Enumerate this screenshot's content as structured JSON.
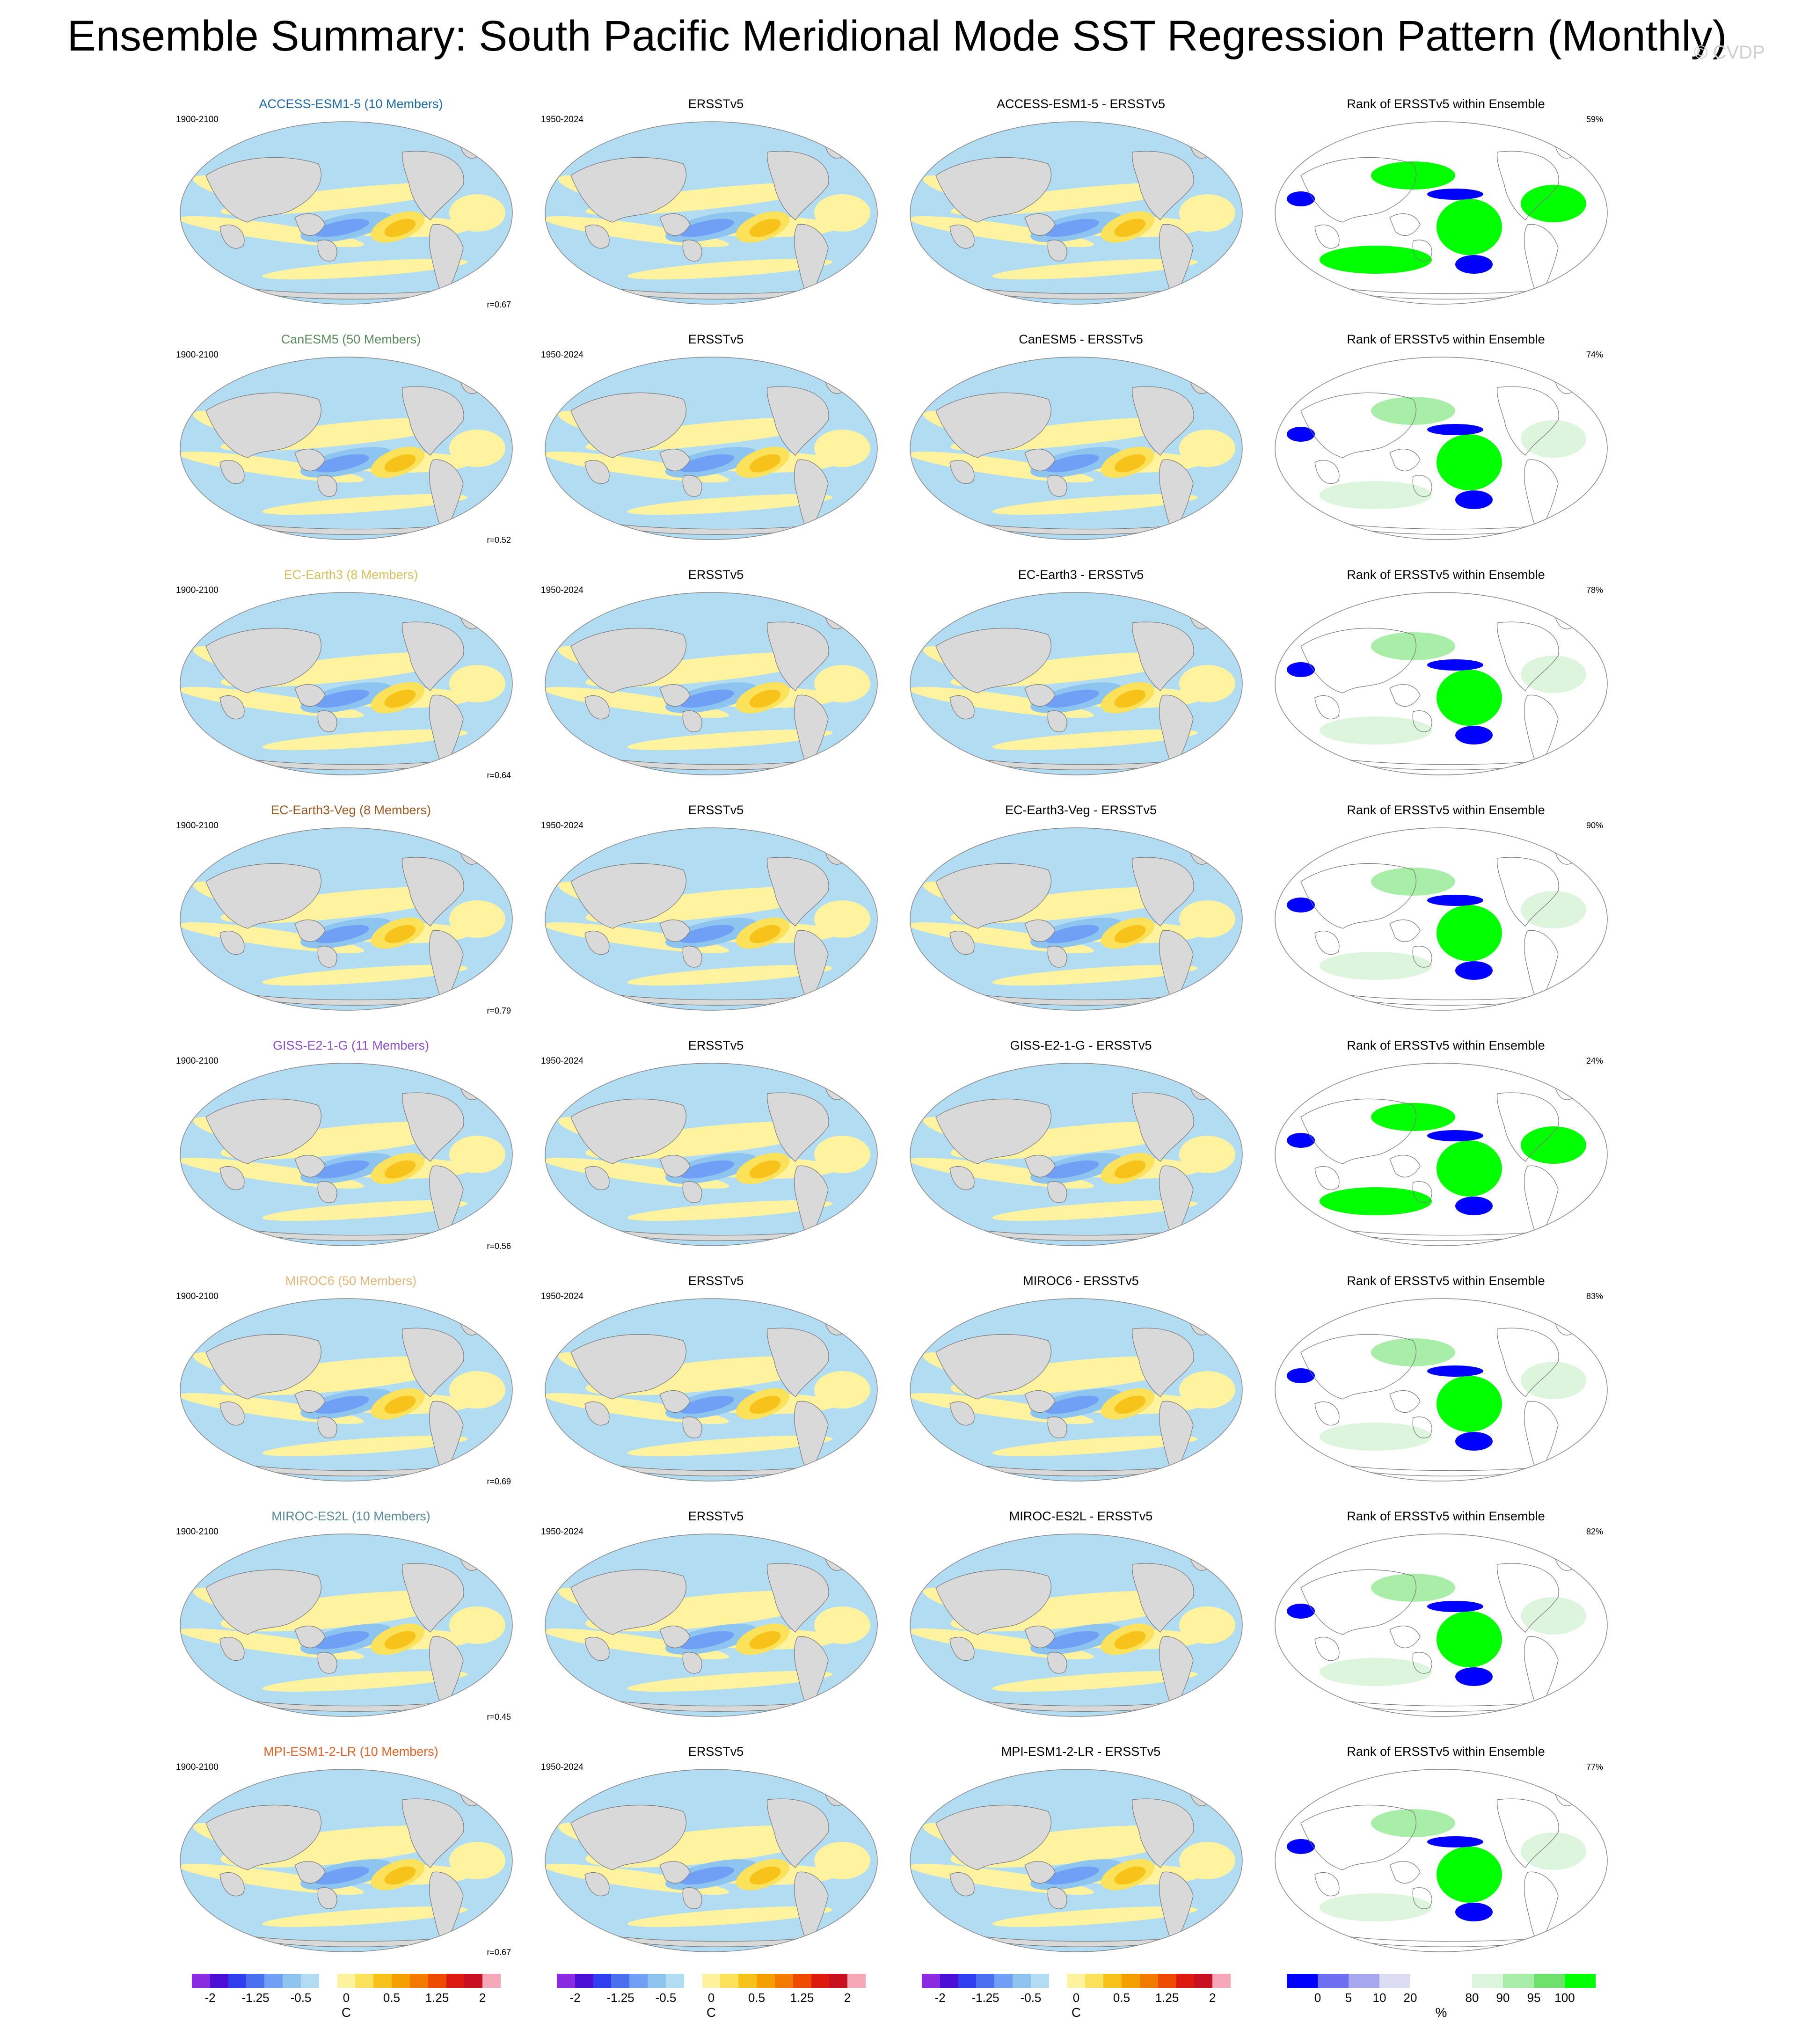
{
  "title": "Ensemble Summary: South Pacific Meridional Mode SST Regression Pattern (Monthly)",
  "copyright": "© CVDP",
  "rows": [
    {
      "model": "ACCESS-ESM1-5 (10 Members)",
      "diff": "ACCESS-ESM1-5 - ERSSTv5",
      "period": "1900-2100",
      "r": "r=0.67",
      "pct": "59%",
      "color": "#1f6aa5"
    },
    {
      "model": "CanESM5 (50 Members)",
      "diff": "CanESM5 - ERSSTv5",
      "period": "1900-2100",
      "r": "r=0.52",
      "pct": "74%",
      "color": "#5b8a5a"
    },
    {
      "model": "EC-Earth3 (8 Members)",
      "diff": "EC-Earth3 - ERSSTv5",
      "period": "1900-2100",
      "r": "r=0.64",
      "pct": "78%",
      "color": "#d8c060"
    },
    {
      "model": "EC-Earth3-Veg (8 Members)",
      "diff": "EC-Earth3-Veg - ERSSTv5",
      "period": "1900-2100",
      "r": "r=0.79",
      "pct": "90%",
      "color": "#9a5a24"
    },
    {
      "model": "GISS-E2-1-G (11 Members)",
      "diff": "GISS-E2-1-G - ERSSTv5",
      "period": "1900-2100",
      "r": "r=0.56",
      "pct": "24%",
      "color": "#8a4fc8"
    },
    {
      "model": "MIROC6 (50 Members)",
      "diff": "MIROC6 - ERSSTv5",
      "period": "1900-2100",
      "r": "r=0.69",
      "pct": "83%",
      "color": "#e0b87a"
    },
    {
      "model": "MIROC-ES2L (10 Members)",
      "diff": "MIROC-ES2L - ERSSTv5",
      "period": "1900-2100",
      "r": "r=0.45",
      "pct": "82%",
      "color": "#5a8a96"
    },
    {
      "model": "MPI-ESM1-2-LR (10 Members)",
      "diff": "MPI-ESM1-2-LR - ERSSTv5",
      "period": "1900-2100",
      "r": "r=0.67",
      "pct": "77%",
      "color": "#e0632a"
    }
  ],
  "obs_title": "ERSSTv5",
  "obs_period": "1950-2024",
  "rank_title": "Rank of ERSSTv5 within Ensemble",
  "sst_colorbar": {
    "colors": [
      "#8a2be2",
      "#4b0fd6",
      "#2f3ff0",
      "#4a70f0",
      "#6fa0f5",
      "#8ec4f0",
      "#b2dcf2",
      "#ffffff",
      "#fff3a0",
      "#fbe25a",
      "#f7c21a",
      "#f5a000",
      "#f37a00",
      "#ee4a00",
      "#dd1a10",
      "#c81020",
      "#f7a8b8"
    ],
    "tick_labels": [
      "-2",
      "-1.25",
      "-0.5",
      "0",
      "0.5",
      "1.25",
      "2"
    ],
    "unit": "C"
  },
  "rank_colorbar": {
    "colors": [
      "#0000ff",
      "#6e6ef2",
      "#a8a8f0",
      "#dcdcf5",
      "#ffffff",
      "#ffffff",
      "#dcf5dc",
      "#a8eea8",
      "#6ee06e",
      "#00ff00"
    ],
    "tick_labels": [
      "0",
      "5",
      "10",
      "20",
      "80",
      "90",
      "95",
      "100"
    ],
    "unit": "%"
  }
}
